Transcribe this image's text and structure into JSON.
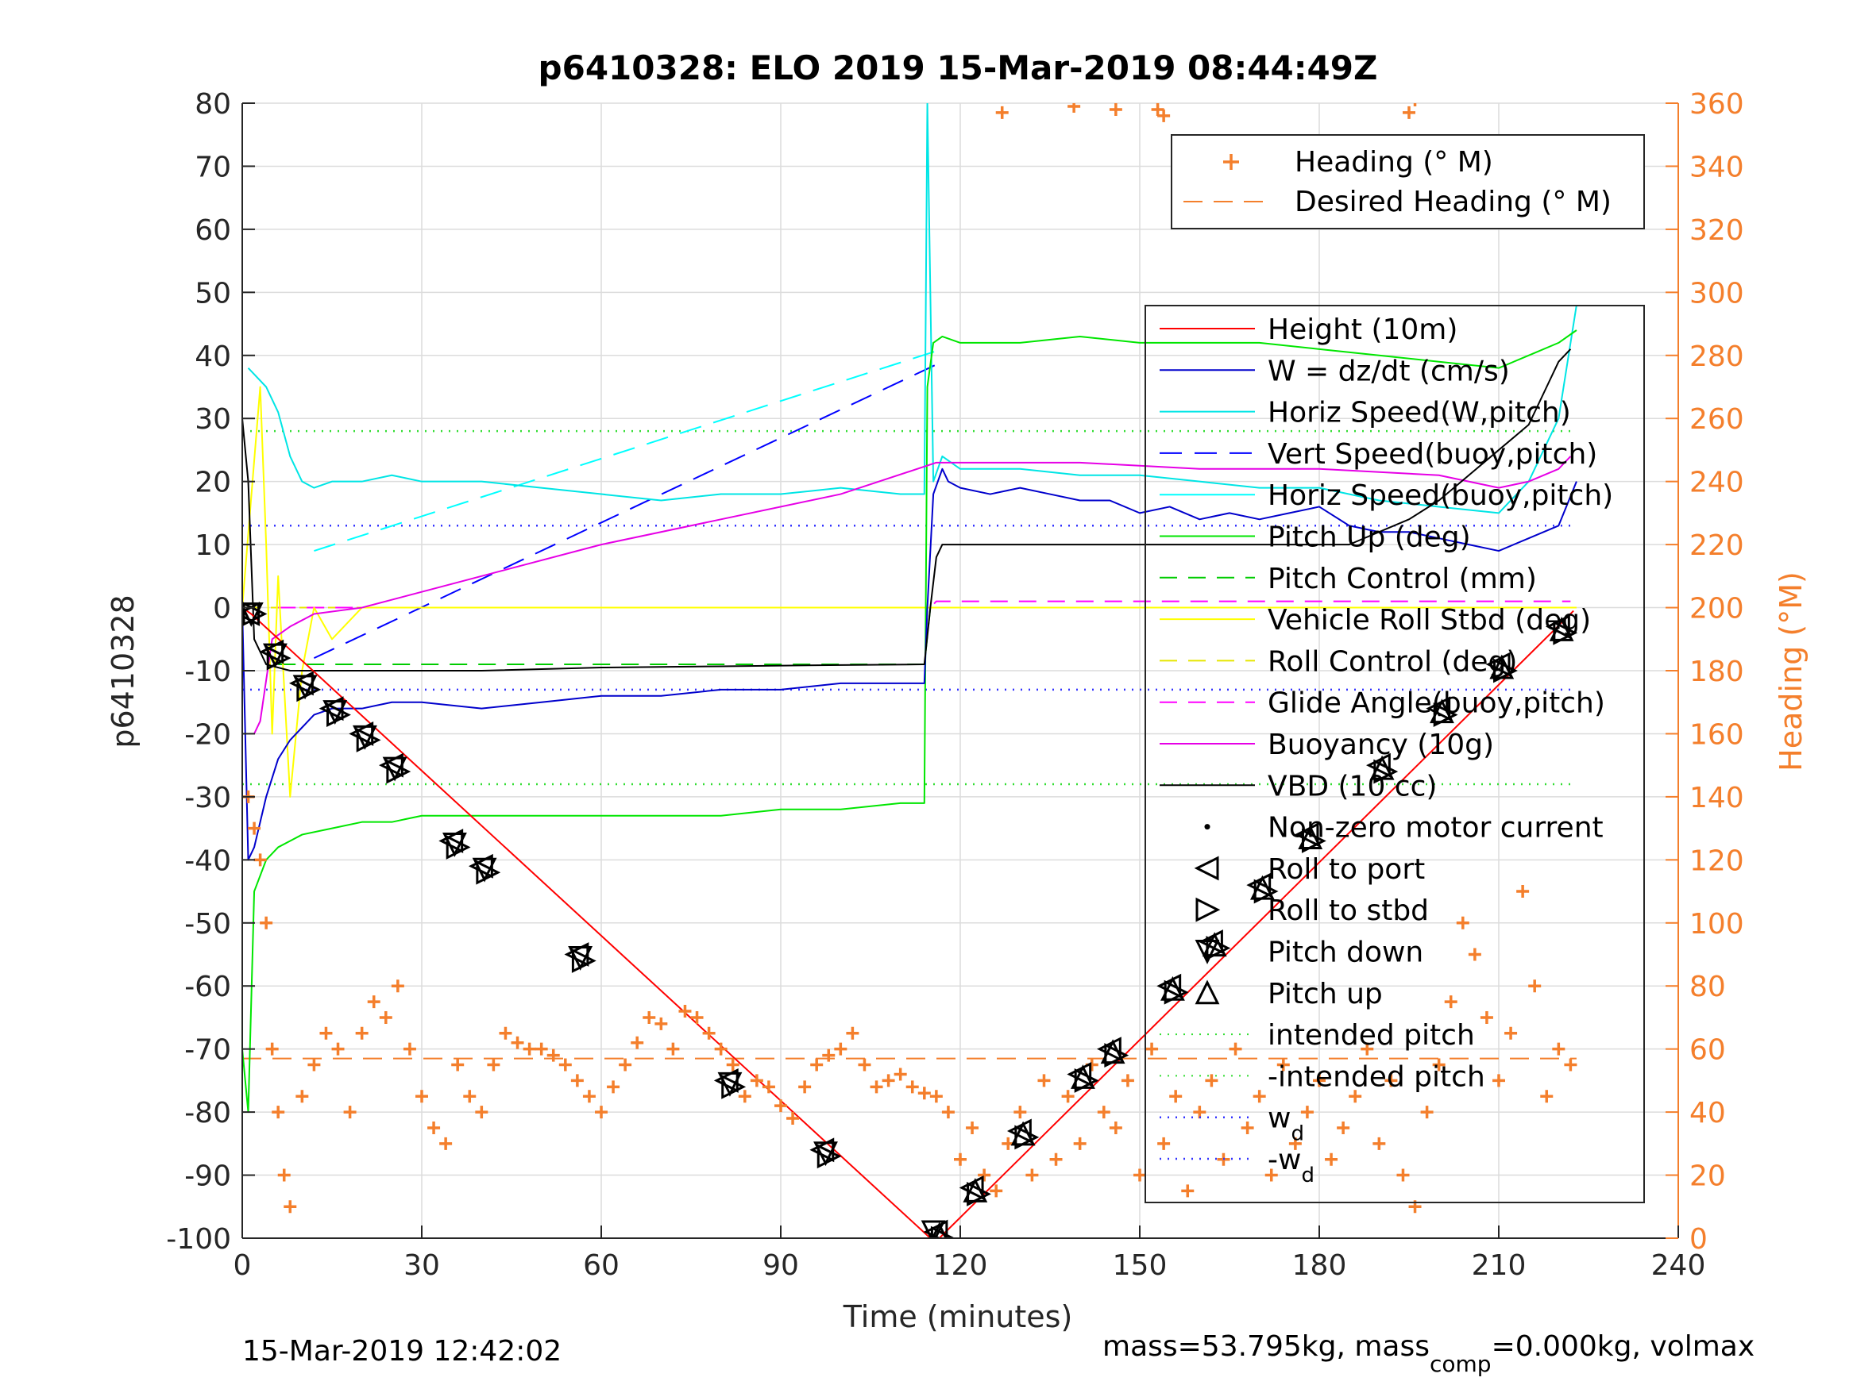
{
  "chart_data": {
    "type": "line",
    "title": "p6410328: ELO 2019 15-Mar-2019 08:44:49Z",
    "xlabel": "Time (minutes)",
    "ylabel": "p6410328",
    "ylabel_right": "Heading (°M)",
    "xlim": [
      0,
      240
    ],
    "ylim": [
      -100,
      80
    ],
    "ylim_right": [
      0,
      360
    ],
    "x_ticks": [
      "0",
      "30",
      "60",
      "90",
      "120",
      "150",
      "180",
      "210",
      "240"
    ],
    "y_ticks": [
      "80",
      "70",
      "60",
      "50",
      "40",
      "30",
      "20",
      "10",
      "0",
      "-10",
      "-20",
      "-30",
      "-40",
      "-50",
      "-60",
      "-70",
      "-80",
      "-90",
      "-100"
    ],
    "y_ticks_right": [
      "360",
      "340",
      "320",
      "300",
      "280",
      "260",
      "240",
      "220",
      "200",
      "180",
      "160",
      "140",
      "120",
      "100",
      "80",
      "60",
      "40",
      "20",
      "0"
    ],
    "grid": true,
    "footer_left": "15-Mar-2019 12:42:02",
    "footer_right": {
      "part1": "mass=53.795kg, mass",
      "sub": "comp",
      "part2": "=0.000kg, volmax"
    },
    "legend_right_axis": {
      "placement": "top-right",
      "entries": [
        "Heading (° M)",
        "Desired Heading (° M)"
      ]
    },
    "legend_left_axis": {
      "placement": "right",
      "entries": [
        "Height (10m)",
        "W = dz/dt (cm/s)",
        "Horiz Speed(W,pitch)",
        "Vert Speed(buoy,pitch)",
        "Horiz Speed(buoy,pitch)",
        "Pitch Up (deg)",
        "Pitch Control (mm)",
        "Vehicle Roll Stbd (deg)",
        "Roll Control (deg)",
        "Glide Angle(buoy,pitch)",
        "Buoyancy (10g)",
        "VBD (10 cc)",
        "Non-zero motor current",
        "Roll to port",
        "Roll to stbd",
        "Pitch down",
        "Pitch up",
        "intended pitch",
        "-intended pitch"
      ],
      "wd_entries": [
        {
          "base": "w",
          "sub": "d"
        },
        {
          "base": "-w",
          "sub": "d"
        }
      ]
    },
    "colors": {
      "height": "#ff0000",
      "w": "#0000cc",
      "horiz_w": "#00e5e5",
      "vert_buoy": "#0000ff",
      "horiz_buoy": "#00ffff",
      "pitch": "#00e600",
      "pitch_ctrl": "#00cc00",
      "roll": "#ffff00",
      "roll_ctrl": "#e6e600",
      "glide": "#ff00ff",
      "buoyancy": "#e600e6",
      "vbd": "#000000",
      "heading": "#f47f2c",
      "right_axis": "#f47f2c"
    },
    "series": [
      {
        "name": "Height (10m)",
        "x": [
          0,
          1.5,
          115,
          116.5,
          222.5
        ],
        "y": [
          0,
          -1,
          -100,
          -100,
          -0.5
        ]
      },
      {
        "name": "W = dz/dt (cm/s)",
        "x": [
          0,
          1,
          2,
          4,
          6,
          8,
          10,
          12,
          15,
          20,
          25,
          30,
          40,
          50,
          60,
          70,
          80,
          90,
          100,
          110,
          114,
          114.5,
          115.5,
          117,
          118,
          120,
          125,
          130,
          135,
          140,
          145,
          150,
          155,
          160,
          165,
          170,
          175,
          180,
          185,
          190,
          195,
          200,
          205,
          210,
          215,
          220,
          223
        ],
        "y": [
          0,
          -40,
          -38,
          -30,
          -24,
          -21,
          -19,
          -17,
          -16,
          -16,
          -15,
          -15,
          -16,
          -15,
          -14,
          -14,
          -13,
          -13,
          -12,
          -12,
          -12,
          0,
          18,
          22,
          20,
          19,
          18,
          19,
          18,
          17,
          17,
          15,
          16,
          14,
          15,
          14,
          15,
          16,
          13,
          12,
          12,
          11,
          10,
          9,
          11,
          13,
          20
        ]
      },
      {
        "name": "Horiz Speed(W,pitch)",
        "x": [
          1,
          2,
          4,
          6,
          8,
          10,
          12,
          15,
          20,
          25,
          30,
          40,
          50,
          60,
          70,
          80,
          90,
          100,
          110,
          114,
          114.5,
          115.5,
          117,
          120,
          130,
          140,
          150,
          160,
          170,
          180,
          190,
          200,
          210,
          215,
          220,
          223
        ],
        "y": [
          38,
          37,
          35,
          31,
          24,
          20,
          19,
          20,
          20,
          21,
          20,
          20,
          19,
          18,
          17,
          18,
          18,
          19,
          18,
          18,
          80,
          20,
          24,
          22,
          22,
          21,
          21,
          20,
          19,
          19,
          17,
          16,
          15,
          20,
          30,
          48
        ]
      },
      {
        "name": "Vert Speed(buoy,pitch)",
        "x": [
          12,
          117
        ],
        "y": [
          -8,
          39
        ]
      },
      {
        "name": "Horiz Speed(buoy,pitch)",
        "x": [
          12,
          117
        ],
        "y": [
          9,
          41
        ]
      },
      {
        "name": "Pitch Up (deg)",
        "x": [
          0,
          1,
          2,
          4,
          6,
          8,
          10,
          15,
          20,
          25,
          30,
          40,
          50,
          60,
          70,
          80,
          90,
          100,
          110,
          114,
          114.5,
          115.5,
          117,
          120,
          130,
          140,
          150,
          160,
          170,
          180,
          190,
          200,
          210,
          215,
          220,
          223
        ],
        "y": [
          -70,
          -80,
          -45,
          -40,
          -38,
          -37,
          -36,
          -35,
          -34,
          -34,
          -33,
          -33,
          -33,
          -33,
          -33,
          -33,
          -32,
          -32,
          -31,
          -31,
          35,
          42,
          43,
          42,
          42,
          43,
          42,
          42,
          42,
          41,
          40,
          39,
          38,
          40,
          42,
          44
        ]
      },
      {
        "name": "Pitch Control (mm)",
        "x": [
          6,
          114,
          115,
          116,
          222
        ],
        "y": [
          -9,
          -9,
          0,
          0,
          0
        ]
      },
      {
        "name": "Vehicle Roll Stbd (deg)",
        "x": [
          0,
          3,
          4,
          5,
          6,
          8,
          10,
          12,
          15,
          20,
          30,
          40,
          50,
          60,
          70,
          80,
          90,
          100,
          110,
          114,
          115,
          120,
          130,
          140,
          150,
          160,
          170,
          180,
          190,
          200,
          210,
          220,
          223
        ],
        "y": [
          0,
          35,
          10,
          -20,
          5,
          -30,
          -10,
          0,
          -5,
          0,
          0,
          0,
          0,
          0,
          0,
          0,
          0,
          0,
          0,
          0,
          0,
          0,
          0,
          0,
          0,
          0,
          0,
          0,
          0,
          0,
          0,
          0,
          0
        ]
      },
      {
        "name": "Roll Control (deg)",
        "x": [
          0,
          222
        ],
        "y": [
          0,
          0
        ]
      },
      {
        "name": "Glide Angle(buoy,pitch)",
        "x": [
          6,
          115,
          116,
          222
        ],
        "y": [
          0,
          0,
          1,
          1
        ]
      },
      {
        "name": "Buoyancy (10g)",
        "x": [
          2,
          3,
          5,
          8,
          12,
          20,
          40,
          60,
          80,
          100,
          116,
          120,
          140,
          160,
          180,
          200,
          210,
          215,
          220,
          222
        ],
        "y": [
          -20,
          -18,
          -5,
          -3,
          -1,
          0,
          5,
          10,
          14,
          18,
          23,
          23,
          23,
          22,
          22,
          21,
          19,
          20,
          22,
          24
        ]
      },
      {
        "name": "VBD (10 cc)",
        "x": [
          0,
          1,
          2,
          4,
          8,
          20,
          40,
          60,
          80,
          100,
          114,
          115,
          116,
          117,
          130,
          150,
          170,
          185,
          195,
          200,
          205,
          210,
          215,
          218,
          220,
          222
        ],
        "y": [
          30,
          20,
          -5,
          -9,
          -10,
          -10,
          -10,
          -9.5,
          -9.3,
          -9.1,
          -9,
          0,
          8,
          10,
          10,
          10,
          10,
          10,
          14,
          17,
          21,
          25,
          29,
          35,
          39,
          41
        ]
      },
      {
        "name": "Roll to port",
        "x": [
          1,
          5,
          10,
          15,
          20,
          25,
          35,
          40,
          56,
          81,
          97,
          116,
          122,
          130,
          140,
          145,
          155,
          162,
          170,
          178,
          190,
          200,
          210,
          220
        ],
        "y": [
          -1,
          -7,
          -12,
          -16,
          -20,
          -25,
          -37,
          -41,
          -55,
          -75,
          -86,
          -99,
          -92,
          -83,
          -74,
          -70,
          -60,
          -53,
          -44,
          -36,
          -25,
          -16,
          -9,
          -3
        ]
      },
      {
        "name": "Roll to stbd",
        "x": [
          2,
          6,
          11,
          16,
          21,
          26,
          36,
          41,
          57,
          82,
          98,
          117,
          123,
          131,
          141,
          146,
          156,
          163,
          171,
          179,
          191,
          201,
          211,
          221
        ],
        "y": [
          -1,
          -8,
          -13,
          -17,
          -21,
          -26,
          -38,
          -42,
          -56,
          -76,
          -87,
          -100,
          -93,
          -84,
          -75,
          -71,
          -61,
          -54,
          -45,
          -37,
          -26,
          -17,
          -10,
          -4
        ]
      },
      {
        "name": "Pitch down",
        "x": [
          1.5,
          5.5,
          10.5,
          15.5,
          20.5,
          25.5,
          35.5,
          40.5,
          56.5,
          81.5,
          97.5,
          115.5
        ],
        "y": [
          -1,
          -7.5,
          -12.5,
          -16.5,
          -20.5,
          -25.5,
          -37.5,
          -41.5,
          -55.5,
          -75.5,
          -86.5,
          -99
        ]
      },
      {
        "name": "Pitch up",
        "x": [
          116.5,
          122.5,
          130.5,
          140.5,
          145.5,
          155.5,
          162.5,
          170.5,
          178.5,
          190.5,
          200.5,
          210.5,
          220.5
        ],
        "y": [
          -99.5,
          -92.5,
          -83.5,
          -74.5,
          -70.5,
          -60.5,
          -53.5,
          -44.5,
          -36.5,
          -25.5,
          -16.5,
          -9.5,
          -3.5
        ]
      },
      {
        "name": "intended pitch",
        "x": [
          0,
          223
        ],
        "y": [
          28,
          28
        ]
      },
      {
        "name": "-intended pitch",
        "x": [
          0,
          223
        ],
        "y": [
          -28,
          -28
        ]
      },
      {
        "name": "wd",
        "x": [
          0,
          223
        ],
        "y": [
          13,
          13
        ]
      },
      {
        "name": "-wd",
        "x": [
          0,
          223
        ],
        "y": [
          -13,
          -13
        ]
      },
      {
        "name": "Desired Heading (° M)",
        "axis": "right",
        "x": [
          0,
          223
        ],
        "y": [
          57,
          57
        ]
      },
      {
        "name": "Heading (° M)",
        "axis": "right",
        "x": [
          1,
          2,
          3,
          4,
          5,
          6,
          7,
          8,
          10,
          12,
          14,
          16,
          18,
          20,
          22,
          24,
          26,
          28,
          30,
          32,
          34,
          36,
          38,
          40,
          42,
          44,
          46,
          48,
          50,
          52,
          54,
          56,
          58,
          60,
          62,
          64,
          66,
          68,
          70,
          72,
          74,
          76,
          78,
          80,
          82,
          84,
          86,
          88,
          90,
          92,
          94,
          96,
          98,
          100,
          102,
          104,
          106,
          108,
          110,
          112,
          114,
          116,
          118,
          120,
          122,
          124,
          126,
          128,
          130,
          132,
          134,
          136,
          138,
          140,
          142,
          144,
          146,
          148,
          150,
          152,
          154,
          156,
          158,
          160,
          162,
          164,
          166,
          168,
          170,
          172,
          174,
          176,
          178,
          180,
          182,
          184,
          186,
          188,
          190,
          192,
          194,
          196,
          198,
          200,
          202,
          204,
          206,
          208,
          210,
          212,
          214,
          216,
          218,
          220,
          222,
          127,
          139,
          146,
          153,
          154,
          195,
          196
        ],
        "y": [
          140,
          130,
          120,
          100,
          60,
          40,
          20,
          10,
          45,
          55,
          65,
          60,
          40,
          65,
          75,
          70,
          80,
          60,
          45,
          35,
          30,
          55,
          45,
          40,
          55,
          65,
          62,
          60,
          60,
          58,
          55,
          50,
          45,
          40,
          48,
          55,
          62,
          70,
          68,
          60,
          72,
          70,
          65,
          60,
          55,
          45,
          50,
          48,
          42,
          38,
          48,
          55,
          58,
          60,
          65,
          55,
          48,
          50,
          52,
          48,
          46,
          45,
          40,
          25,
          35,
          20,
          15,
          30,
          40,
          20,
          50,
          25,
          45,
          30,
          55,
          40,
          35,
          50,
          20,
          60,
          30,
          45,
          15,
          40,
          50,
          25,
          60,
          35,
          45,
          20,
          55,
          30,
          40,
          50,
          25,
          35,
          45,
          60,
          30,
          50,
          20,
          10,
          40,
          55,
          75,
          100,
          90,
          70,
          50,
          65,
          110,
          80,
          45,
          60,
          55,
          357,
          359,
          358,
          358,
          356,
          357,
          361
        ]
      }
    ]
  }
}
